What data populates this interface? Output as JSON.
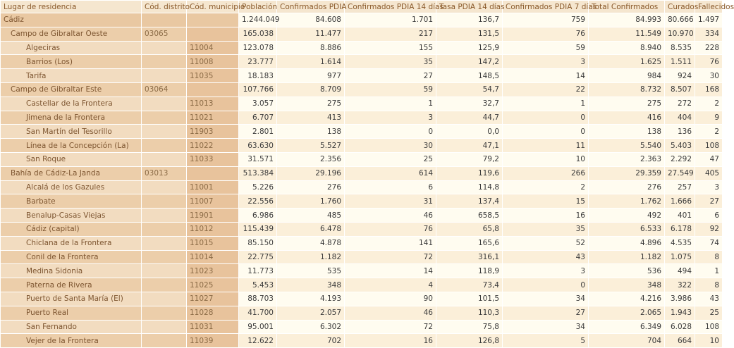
{
  "headers": [
    "Lugar de residencia",
    "Cód. distrito",
    "Cód. municipio",
    "Población",
    "Confirmados PDIA",
    "Confirmados PDIA 14 días",
    "Tasa PDIA 14 días",
    "Confirmados PDIA 7 días",
    "Total Confirmados",
    "Curados",
    "Fallecidos"
  ],
  "rows": [
    {
      "level": 0,
      "cells": [
        "Cádiz",
        "",
        "",
        "1.244.049",
        "84.608",
        "1.701",
        "136,7",
        "759",
        "84.993",
        "80.666",
        "1.497"
      ]
    },
    {
      "level": 1,
      "cells": [
        "Campo de Gibraltar Oeste",
        "03065",
        "",
        "165.038",
        "11.477",
        "217",
        "131,5",
        "76",
        "11.549",
        "10.970",
        "334"
      ]
    },
    {
      "level": 2,
      "cells": [
        "Algeciras",
        "",
        "11004",
        "123.078",
        "8.886",
        "155",
        "125,9",
        "59",
        "8.940",
        "8.535",
        "228"
      ]
    },
    {
      "level": 2,
      "cells": [
        "Barrios (Los)",
        "",
        "11008",
        "23.777",
        "1.614",
        "35",
        "147,2",
        "3",
        "1.625",
        "1.511",
        "76"
      ]
    },
    {
      "level": 2,
      "cells": [
        "Tarifa",
        "",
        "11035",
        "18.183",
        "977",
        "27",
        "148,5",
        "14",
        "984",
        "924",
        "30"
      ]
    },
    {
      "level": 1,
      "cells": [
        "Campo de Gibraltar Este",
        "03064",
        "",
        "107.766",
        "8.709",
        "59",
        "54,7",
        "22",
        "8.732",
        "8.507",
        "168"
      ]
    },
    {
      "level": 2,
      "cells": [
        "Castellar de la Frontera",
        "",
        "11013",
        "3.057",
        "275",
        "1",
        "32,7",
        "1",
        "275",
        "272",
        "2"
      ]
    },
    {
      "level": 2,
      "cells": [
        "Jimena de la Frontera",
        "",
        "11021",
        "6.707",
        "413",
        "3",
        "44,7",
        "0",
        "416",
        "404",
        "9"
      ]
    },
    {
      "level": 2,
      "cells": [
        "San Martín del Tesorillo",
        "",
        "11903",
        "2.801",
        "138",
        "0",
        "0,0",
        "0",
        "138",
        "136",
        "2"
      ]
    },
    {
      "level": 2,
      "cells": [
        "Línea de la Concepción (La)",
        "",
        "11022",
        "63.630",
        "5.527",
        "30",
        "47,1",
        "11",
        "5.540",
        "5.403",
        "108"
      ]
    },
    {
      "level": 2,
      "cells": [
        "San Roque",
        "",
        "11033",
        "31.571",
        "2.356",
        "25",
        "79,2",
        "10",
        "2.363",
        "2.292",
        "47"
      ]
    },
    {
      "level": 1,
      "cells": [
        "Bahía de Cádiz-La Janda",
        "03013",
        "",
        "513.384",
        "29.196",
        "614",
        "119,6",
        "266",
        "29.359",
        "27.549",
        "405"
      ]
    },
    {
      "level": 2,
      "cells": [
        "Alcalá de los Gazules",
        "",
        "11001",
        "5.226",
        "276",
        "6",
        "114,8",
        "2",
        "276",
        "257",
        "3"
      ]
    },
    {
      "level": 2,
      "cells": [
        "Barbate",
        "",
        "11007",
        "22.556",
        "1.760",
        "31",
        "137,4",
        "15",
        "1.762",
        "1.666",
        "27"
      ]
    },
    {
      "level": 2,
      "cells": [
        "Benalup-Casas Viejas",
        "",
        "11901",
        "6.986",
        "485",
        "46",
        "658,5",
        "16",
        "492",
        "401",
        "6"
      ]
    },
    {
      "level": 2,
      "cells": [
        "Cádiz (capital)",
        "",
        "11012",
        "115.439",
        "6.478",
        "76",
        "65,8",
        "35",
        "6.533",
        "6.178",
        "92"
      ]
    },
    {
      "level": 2,
      "cells": [
        "Chiclana de la Frontera",
        "",
        "11015",
        "85.150",
        "4.878",
        "141",
        "165,6",
        "52",
        "4.896",
        "4.535",
        "74"
      ]
    },
    {
      "level": 2,
      "cells": [
        "Conil de la Frontera",
        "",
        "11014",
        "22.775",
        "1.182",
        "72",
        "316,1",
        "43",
        "1.182",
        "1.075",
        "8"
      ]
    },
    {
      "level": 2,
      "cells": [
        "Medina Sidonia",
        "",
        "11023",
        "11.773",
        "535",
        "14",
        "118,9",
        "3",
        "536",
        "494",
        "1"
      ]
    },
    {
      "level": 2,
      "cells": [
        "Paterna de Rivera",
        "",
        "11025",
        "5.453",
        "348",
        "4",
        "73,4",
        "0",
        "348",
        "322",
        "8"
      ]
    },
    {
      "level": 2,
      "cells": [
        "Puerto de Santa María (El)",
        "",
        "11027",
        "88.703",
        "4.193",
        "90",
        "101,5",
        "34",
        "4.216",
        "3.986",
        "43"
      ]
    },
    {
      "level": 2,
      "cells": [
        "Puerto Real",
        "",
        "11028",
        "41.700",
        "2.057",
        "46",
        "110,3",
        "27",
        "2.065",
        "1.943",
        "25"
      ]
    },
    {
      "level": 2,
      "cells": [
        "San Fernando",
        "",
        "11031",
        "95.001",
        "6.302",
        "72",
        "75,8",
        "34",
        "6.349",
        "6.028",
        "108"
      ]
    },
    {
      "level": 2,
      "cells": [
        "Vejer de la Frontera",
        "",
        "11039",
        "12.622",
        "702",
        "16",
        "126,8",
        "5",
        "704",
        "664",
        "10"
      ]
    }
  ]
}
